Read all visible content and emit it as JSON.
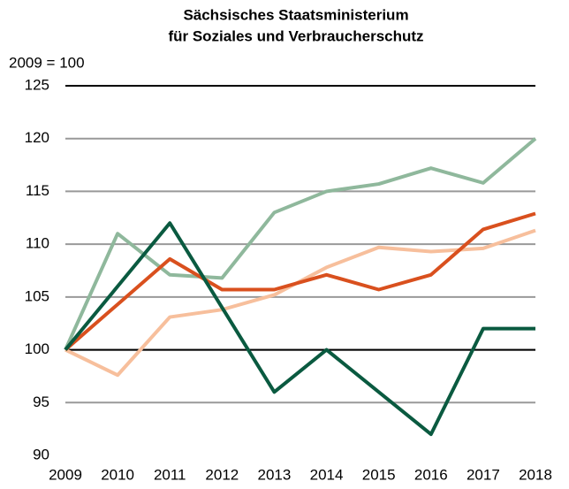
{
  "chart_data": {
    "type": "line",
    "title": [
      "Sächsisches Staatsministerium",
      "für Soziales und Verbraucherschutz"
    ],
    "y_label": "2009 = 100",
    "categories": [
      "2009",
      "2010",
      "2011",
      "2012",
      "2013",
      "2014",
      "2015",
      "2016",
      "2017",
      "2018"
    ],
    "series": [
      {
        "color": "#8fb89c",
        "values": [
          100,
          111,
          107.1,
          106.8,
          113,
          115,
          115.7,
          117.2,
          115.8,
          120
        ]
      },
      {
        "color": "#f7bf9c",
        "values": [
          100,
          97.6,
          103.1,
          103.8,
          105.2,
          107.8,
          109.7,
          109.3,
          109.6,
          111.3
        ]
      },
      {
        "color": "#d9501e",
        "values": [
          100,
          104.3,
          108.6,
          105.7,
          105.7,
          107.1,
          105.7,
          107.1,
          111.4,
          112.9
        ]
      },
      {
        "color": "#0a5a40",
        "values": [
          100,
          106,
          112,
          104,
          96,
          100,
          96,
          92,
          102,
          102
        ]
      }
    ],
    "ylim": [
      90,
      125
    ],
    "yticks": [
      90,
      95,
      100,
      105,
      110,
      115,
      120,
      125
    ],
    "grid": true,
    "grid_color": "#999999",
    "reference_line": 100,
    "reference_color": "#000000"
  }
}
